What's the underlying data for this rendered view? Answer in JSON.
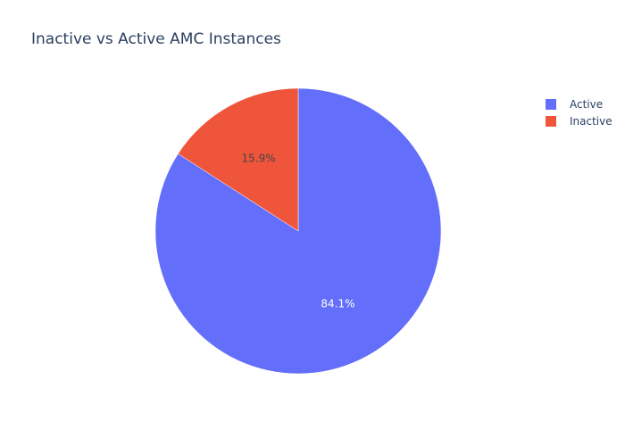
{
  "chart_data": {
    "type": "pie",
    "title": "Inactive vs Active AMC Instances",
    "slices": [
      {
        "label": "Active",
        "value": 84.1,
        "color": "#636efa",
        "text": "84.1%",
        "text_color": "#ffffff"
      },
      {
        "label": "Inactive",
        "value": 15.9,
        "color": "#ef553b",
        "text": "15.9%",
        "text_color": "#444444"
      }
    ],
    "legend": {
      "position": "top-right",
      "entries": [
        "Active",
        "Inactive"
      ]
    }
  }
}
